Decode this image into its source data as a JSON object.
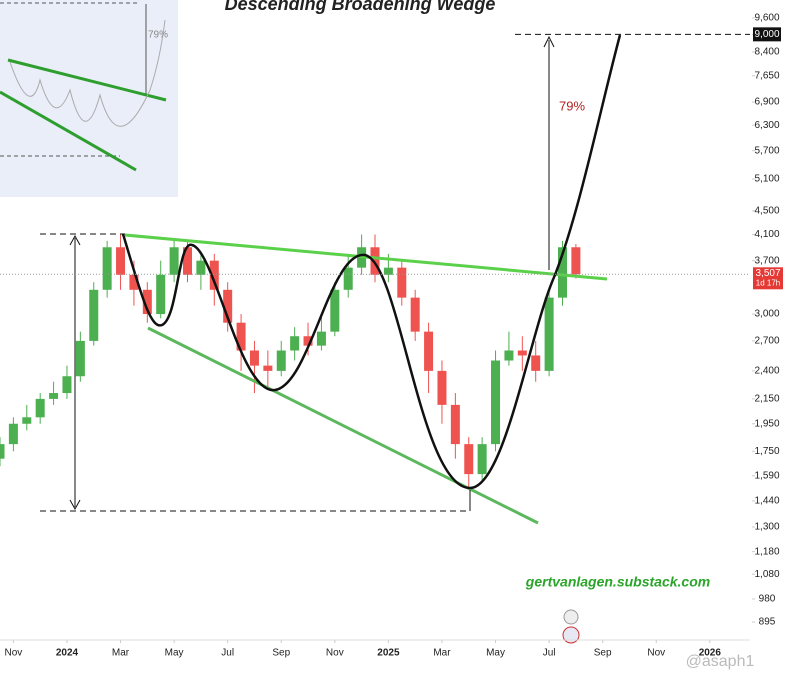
{
  "chart_data": {
    "type": "candlestick",
    "title": "Descending Broadening Wedge",
    "x": [
      -0.5,
      0,
      0.5,
      1,
      1.5,
      2,
      2.5,
      3,
      3.5,
      4,
      4.5,
      5,
      5.5,
      6,
      6.5,
      7,
      7.5,
      8,
      8.5,
      9,
      9.5,
      10,
      10.5,
      11,
      11.5,
      12,
      12.5,
      13,
      13.5,
      14,
      14.5,
      15,
      15.5,
      16,
      16.5,
      17,
      17.5,
      18,
      18.5,
      19,
      19.5,
      20,
      20.5,
      21
    ],
    "open": [
      1700,
      1800,
      1950,
      2000,
      2150,
      2200,
      2350,
      2700,
      3300,
      3900,
      3500,
      3300,
      3000,
      3500,
      3900,
      3500,
      3700,
      3300,
      2900,
      2600,
      2450,
      2400,
      2600,
      2750,
      2650,
      2800,
      3300,
      3600,
      3900,
      3500,
      3600,
      3200,
      2800,
      2400,
      2100,
      1800,
      1600,
      1800,
      2500,
      2600,
      2550,
      2400,
      3200,
      3900
    ],
    "high": [
      1850,
      2000,
      2100,
      2200,
      2300,
      2450,
      2800,
      3400,
      4000,
      4100,
      3700,
      3400,
      3700,
      4000,
      4000,
      3800,
      3800,
      3400,
      3000,
      2700,
      2600,
      2700,
      2850,
      2900,
      3000,
      3400,
      3800,
      4100,
      4100,
      3800,
      3700,
      3300,
      2900,
      2500,
      2200,
      1850,
      1850,
      2600,
      2800,
      2750,
      2700,
      3300,
      4000,
      3950
    ],
    "low": [
      1650,
      1750,
      1900,
      1950,
      2100,
      2150,
      2300,
      2650,
      3200,
      3300,
      3100,
      2900,
      2950,
      3400,
      3400,
      3300,
      3100,
      2800,
      2400,
      2200,
      2250,
      2350,
      2500,
      2550,
      2600,
      2750,
      3200,
      3500,
      3400,
      3400,
      3100,
      2700,
      2200,
      1950,
      1700,
      1520,
      1550,
      1750,
      2450,
      2400,
      2300,
      2350,
      3100,
      3450
    ],
    "close": [
      1800,
      1950,
      2000,
      2150,
      2200,
      2350,
      2700,
      3300,
      3900,
      3500,
      3300,
      3000,
      3500,
      3900,
      3500,
      3700,
      3300,
      2900,
      2600,
      2450,
      2400,
      2600,
      2750,
      2650,
      2800,
      3300,
      3600,
      3900,
      3500,
      3600,
      3200,
      2800,
      2400,
      2100,
      1800,
      1600,
      1800,
      2500,
      2600,
      2550,
      2400,
      3200,
      3900,
      3507
    ],
    "up_color": "#4caf50",
    "down_color": "#ef5350",
    "log_scale": true,
    "xlim": [
      -0.5,
      27.5
    ],
    "xticks": [
      {
        "value": 0,
        "label": "Nov"
      },
      {
        "value": 2,
        "label": "2024"
      },
      {
        "value": 4,
        "label": "Mar"
      },
      {
        "value": 6,
        "label": "May"
      },
      {
        "value": 8,
        "label": "Jul"
      },
      {
        "value": 10,
        "label": "Sep"
      },
      {
        "value": 12,
        "label": "Nov"
      },
      {
        "value": 14,
        "label": "2025"
      },
      {
        "value": 16,
        "label": "Mar"
      },
      {
        "value": 18,
        "label": "May"
      },
      {
        "value": 20,
        "label": "Jul"
      },
      {
        "value": 22,
        "label": "Sep"
      },
      {
        "value": 24,
        "label": "Nov"
      },
      {
        "value": 26,
        "label": "2026"
      }
    ],
    "ylim": [
      834,
      10300
    ],
    "yticks": [
      {
        "value": 9600,
        "label": "9,600"
      },
      {
        "value": 9000,
        "label": "9,000"
      },
      {
        "value": 8400,
        "label": "8,400"
      },
      {
        "value": 7650,
        "label": "7,650"
      },
      {
        "value": 6900,
        "label": "6,900"
      },
      {
        "value": 6300,
        "label": "6,300"
      },
      {
        "value": 5700,
        "label": "5,700"
      },
      {
        "value": 5100,
        "label": "5,100"
      },
      {
        "value": 4500,
        "label": "4,500"
      },
      {
        "value": 4100,
        "label": "4,100"
      },
      {
        "value": 3700,
        "label": "3,700"
      },
      {
        "value": 3000,
        "label": "3,000"
      },
      {
        "value": 2700,
        "label": "2,700"
      },
      {
        "value": 2400,
        "label": "2,400"
      },
      {
        "value": 2150,
        "label": "2,150"
      },
      {
        "value": 1950,
        "label": "1,950"
      },
      {
        "value": 1750,
        "label": "1,750"
      },
      {
        "value": 1590,
        "label": "1,590"
      },
      {
        "value": 1440,
        "label": "1,440"
      },
      {
        "value": 1300,
        "label": "1,300"
      },
      {
        "value": 1180,
        "label": "1,180"
      },
      {
        "value": 1080,
        "label": "1,080"
      },
      980,
      895
    ],
    "target": 9000,
    "last_price": 3507,
    "last_price_label": "3,507",
    "countdown": "1d 17h",
    "annotations": [
      "79%",
      "gertvanlagen.substack.com"
    ],
    "inset_label": "79%",
    "watermark": "@asaph1"
  }
}
